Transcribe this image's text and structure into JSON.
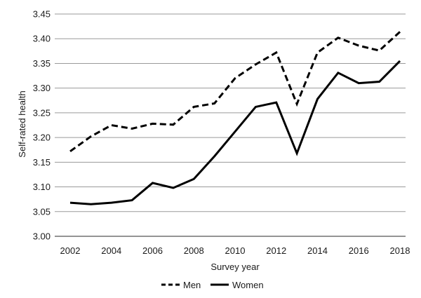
{
  "chart_data": {
    "type": "line",
    "title": "",
    "xlabel": "Survey year",
    "ylabel": "Self-rated health",
    "x": [
      2002,
      2003,
      2004,
      2005,
      2006,
      2007,
      2008,
      2009,
      2010,
      2011,
      2012,
      2013,
      2014,
      2015,
      2016,
      2017,
      2018
    ],
    "xticks": [
      "2002",
      "2004",
      "2006",
      "2008",
      "2010",
      "2012",
      "2014",
      "2016",
      "2018"
    ],
    "yticks": [
      "3.00",
      "3.05",
      "3.10",
      "3.15",
      "3.20",
      "3.25",
      "3.30",
      "3.35",
      "3.40",
      "3.45"
    ],
    "ylim": [
      3.0,
      3.45
    ],
    "xlim": [
      2002,
      2018
    ],
    "grid": "horizontal",
    "legend": "bottom",
    "series": [
      {
        "name": "Men",
        "style": "dashed",
        "color": "#000000",
        "values": [
          3.172,
          3.202,
          3.225,
          3.218,
          3.228,
          3.226,
          3.262,
          3.269,
          3.32,
          3.348,
          3.372,
          3.268,
          3.372,
          3.402,
          3.386,
          3.376,
          3.414
        ]
      },
      {
        "name": "Women",
        "style": "solid",
        "color": "#000000",
        "values": [
          3.068,
          3.065,
          3.068,
          3.073,
          3.108,
          3.098,
          3.116,
          3.162,
          3.212,
          3.262,
          3.271,
          3.168,
          3.278,
          3.331,
          3.31,
          3.313,
          3.355
        ]
      }
    ]
  }
}
